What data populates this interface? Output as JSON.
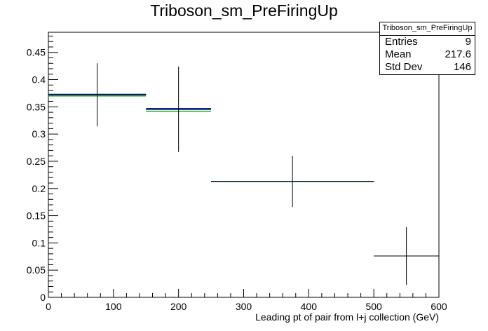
{
  "title": "Triboson_sm_PreFiringUp",
  "stats": {
    "name": "Triboson_sm_PreFiringUp",
    "rows": [
      {
        "label": "Entries",
        "value": "9"
      },
      {
        "label": "Mean",
        "value": "217.6"
      },
      {
        "label": "Std Dev",
        "value": "146"
      }
    ]
  },
  "chart_data": {
    "type": "histogram",
    "title": "Triboson_sm_PreFiringUp",
    "xlabel": "Leading pt of pair from l+j collection (GeV)",
    "ylabel": "",
    "xlim": [
      0,
      600
    ],
    "ylim": [
      0,
      0.487
    ],
    "x_ticks": [
      0,
      100,
      200,
      300,
      400,
      500,
      600
    ],
    "y_ticks": [
      0,
      0.05,
      0.1,
      0.15,
      0.2,
      0.25,
      0.3,
      0.35,
      0.4,
      0.45
    ],
    "x_tick_labels": [
      "0",
      "100",
      "200",
      "300",
      "400",
      "500",
      "600"
    ],
    "y_tick_labels": [
      "0",
      "0.05",
      "0.1",
      "0.15",
      "0.2",
      "0.25",
      "0.3",
      "0.35",
      "0.4",
      "0.45"
    ],
    "series": [
      {
        "style": "errorbars",
        "color": "#000000",
        "points": [
          {
            "x": 75,
            "xlow": 0,
            "xhigh": 150,
            "y": 0.372,
            "ylow": 0.314,
            "yhigh": 0.43
          },
          {
            "x": 200,
            "xlow": 150,
            "xhigh": 250,
            "y": 0.345,
            "ylow": 0.267,
            "yhigh": 0.424
          },
          {
            "x": 375,
            "xlow": 250,
            "xhigh": 500,
            "y": 0.213,
            "ylow": 0.166,
            "yhigh": 0.26
          },
          {
            "x": 550,
            "xlow": 500,
            "xhigh": 600,
            "y": 0.076,
            "ylow": 0.023,
            "yhigh": 0.129
          }
        ]
      },
      {
        "style": "bins",
        "color": "#0000cc",
        "bins": [
          {
            "xlow": 0,
            "xhigh": 150,
            "y": 0.373
          },
          {
            "xlow": 150,
            "xhigh": 250,
            "y": 0.347
          },
          {
            "xlow": 250,
            "xhigh": 500,
            "y": 0.213
          }
        ]
      },
      {
        "style": "bins",
        "color": "#00aa00",
        "bins": [
          {
            "xlow": 0,
            "xhigh": 150,
            "y": 0.37
          },
          {
            "xlow": 150,
            "xhigh": 250,
            "y": 0.342
          },
          {
            "xlow": 250,
            "xhigh": 500,
            "y": 0.213
          }
        ]
      }
    ]
  }
}
